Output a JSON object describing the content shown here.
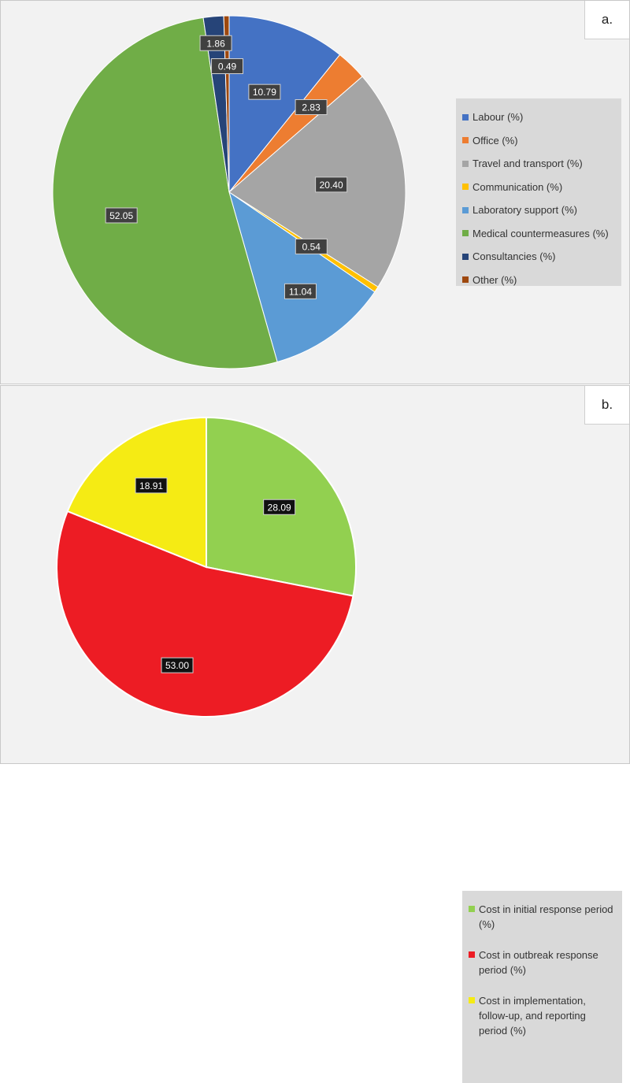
{
  "chart_data": [
    {
      "type": "pie",
      "panel_label": "a.",
      "categories": [
        "Labour (%)",
        "Office (%)",
        "Travel and transport (%)",
        "Communication (%)",
        "Laboratory support (%)",
        "Medical countermeasures (%)",
        "Consultancies (%)",
        "Other (%)"
      ],
      "values": [
        10.79,
        2.83,
        20.4,
        0.54,
        11.04,
        52.05,
        1.86,
        0.49
      ],
      "labels": [
        "10.79",
        "2.83",
        "20.40",
        "0.54",
        "11.04",
        "52.05",
        "1.86",
        "0.49"
      ],
      "colors": [
        "#4472c4",
        "#ed7d31",
        "#a5a5a5",
        "#ffc000",
        "#5b9bd5",
        "#70ad47",
        "#264478",
        "#9e480e"
      ],
      "legend_position": "right"
    },
    {
      "type": "pie",
      "panel_label": "b.",
      "categories": [
        "Cost in initial response period (%)",
        "Cost in outbreak response period (%)",
        "Cost in implementation, follow-up, and reporting period (%)"
      ],
      "values": [
        28.09,
        53.0,
        18.91
      ],
      "labels": [
        "28.09",
        "53.00",
        "18.91"
      ],
      "colors": [
        "#92d050",
        "#ed1c24",
        "#f5eb14"
      ],
      "legend_position": "right"
    }
  ]
}
